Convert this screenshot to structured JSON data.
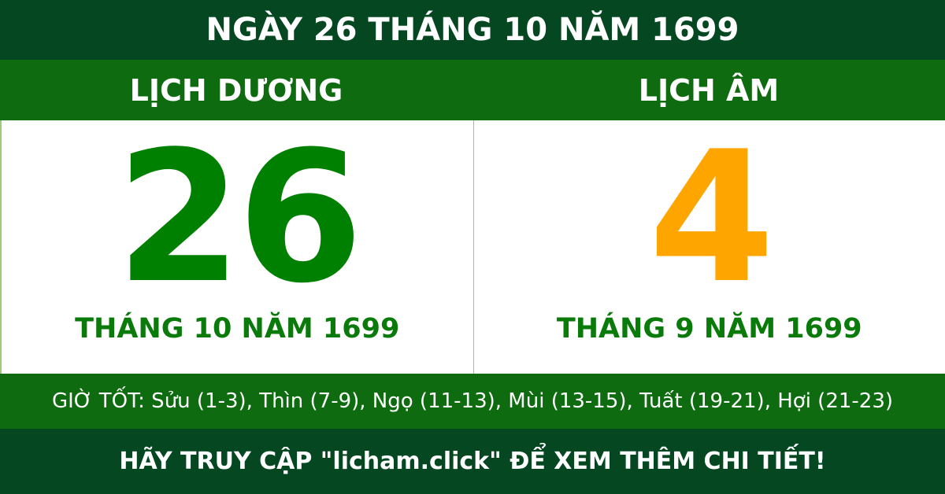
{
  "header": {
    "title": "NGÀY 26 THÁNG 10 NĂM 1699"
  },
  "solar": {
    "label": "LỊCH DƯƠNG",
    "day": "26",
    "month_year": "THÁNG 10 NĂM 1699"
  },
  "lunar": {
    "label": "LỊCH ÂM",
    "day": "4",
    "month_year": "THÁNG 9 NĂM 1699"
  },
  "good_hours": "GIỜ TỐT: Sửu (1-3), Thìn (7-9), Ngọ (11-13), Mùi (13-15), Tuất (19-21), Hợi (21-23)",
  "footer": {
    "cta": "HÃY TRUY CẬP \"licham.click\" ĐỂ XEM THÊM CHI TIẾT!"
  },
  "colors": {
    "dark_green": "#044721",
    "green": "#0e6b10",
    "solar_day": "#008000",
    "lunar_day": "#ffa500"
  }
}
